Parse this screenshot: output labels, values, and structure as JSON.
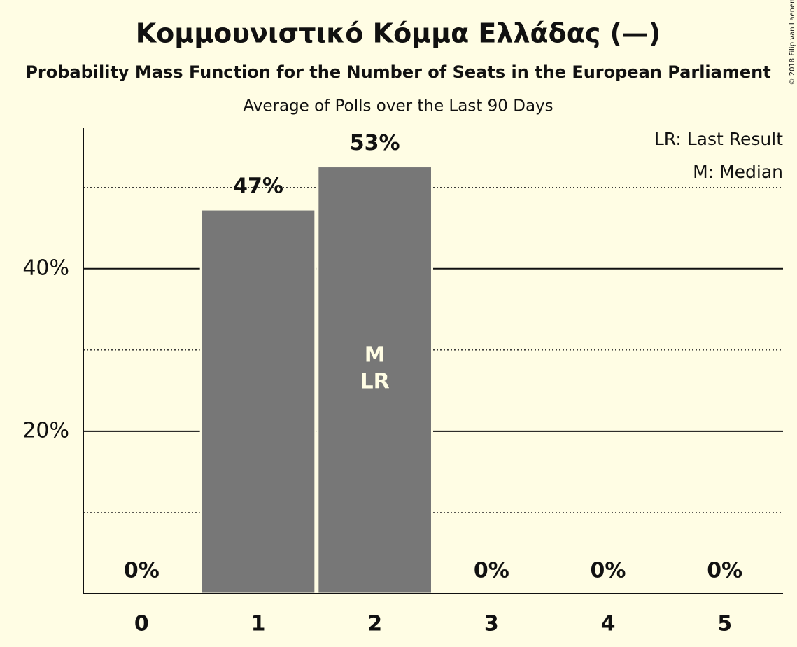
{
  "chart_data": {
    "type": "bar",
    "title": "Κομμουνιστικό Κόμμα Ελλάδας (—)",
    "subtitle": "Probability Mass Function for the Number of Seats in the European Parliament",
    "subtitle2": "Average of Polls over the Last 90 Days",
    "credit": "© 2018 Filip van Laenen",
    "categories": [
      "0",
      "1",
      "2",
      "3",
      "4",
      "5"
    ],
    "values": [
      0,
      47.3,
      52.6,
      0,
      0,
      0
    ],
    "value_labels": [
      "0%",
      "47%",
      "53%",
      "0%",
      "0%",
      "0%"
    ],
    "annotations": [
      null,
      null,
      [
        "M",
        "LR"
      ],
      null,
      null,
      null
    ],
    "color": "#777777",
    "ylim": [
      0,
      57.3
    ],
    "yticks": [
      {
        "value": 20,
        "label": "20%"
      },
      {
        "value": 40,
        "label": "40%"
      }
    ],
    "minor_yticks": [
      10,
      30,
      50
    ],
    "grid": true,
    "legend": [
      "LR: Last Result",
      "M: Median"
    ],
    "legend_position": "top-right"
  }
}
